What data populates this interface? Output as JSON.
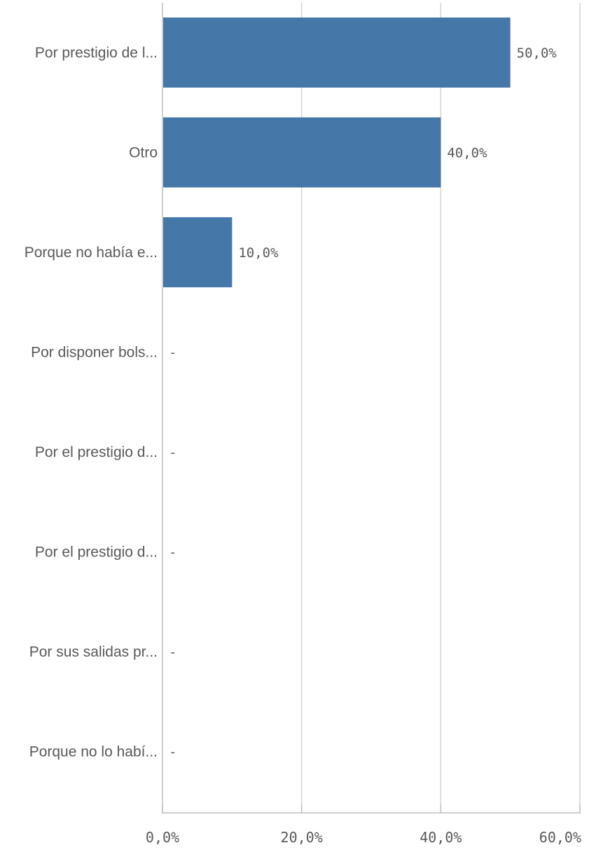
{
  "chart_data": {
    "type": "bar",
    "orientation": "horizontal",
    "categories": [
      "Por prestigio de l...",
      "Otro",
      "Porque no había e...",
      "Por disponer bols...",
      "Por el prestigio d...",
      "Por el prestigio d...",
      "Por sus salidas pr...",
      "Porque no lo habí..."
    ],
    "values": [
      50.0,
      40.0,
      10.0,
      0,
      0,
      0,
      0,
      0
    ],
    "value_labels": [
      "50,0%",
      "40,0%",
      "10,0%",
      "-",
      "-",
      "-",
      "-",
      "-"
    ],
    "xlim": [
      0,
      60
    ],
    "x_ticks": [
      0,
      20,
      40,
      60
    ],
    "x_tick_labels": [
      "0,0%",
      "20,0%",
      "40,0%",
      "60,0%"
    ],
    "grid": true,
    "legend": "none",
    "colors": {
      "bar": "#4577a9",
      "text": "#595959",
      "grid": "#d4d4d4"
    }
  }
}
